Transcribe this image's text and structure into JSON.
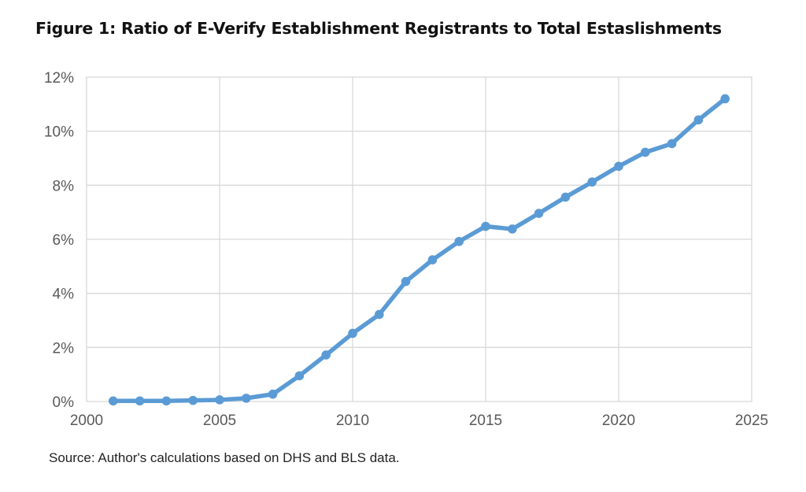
{
  "title": "Figure 1: Ratio of E-Verify Establishment Registrants to Total Estaslishments",
  "source": "Source: Author's calculations based on DHS and BLS data.",
  "chart_data": {
    "type": "line",
    "xlim": [
      2000,
      2025
    ],
    "ylim": [
      0,
      12
    ],
    "x_ticks": [
      2000,
      2005,
      2010,
      2015,
      2020,
      2025
    ],
    "y_ticks": [
      0,
      2,
      4,
      6,
      8,
      10,
      12
    ],
    "x_tick_labels": [
      "2000",
      "2005",
      "2010",
      "2015",
      "2020",
      "2025"
    ],
    "y_tick_labels": [
      "0%",
      "2%",
      "4%",
      "6%",
      "8%",
      "10%",
      "12%"
    ],
    "y_unit": "percent",
    "grid": true,
    "legend": "none",
    "line_color": "#5b9bd5",
    "gridline_color": "#d9d9d9",
    "series": [
      {
        "x": [
          2001,
          2002,
          2003,
          2004,
          2005,
          2006,
          2007,
          2008,
          2009,
          2010,
          2011,
          2012,
          2013,
          2014,
          2015,
          2016,
          2017,
          2018,
          2019,
          2020,
          2021,
          2022,
          2023,
          2024
        ],
        "values": [
          0.02,
          0.02,
          0.02,
          0.04,
          0.06,
          0.12,
          0.27,
          0.95,
          1.72,
          2.52,
          3.22,
          4.44,
          5.24,
          5.92,
          6.48,
          6.38,
          6.96,
          7.56,
          8.12,
          8.7,
          9.22,
          9.54,
          10.42,
          11.2
        ]
      }
    ]
  }
}
